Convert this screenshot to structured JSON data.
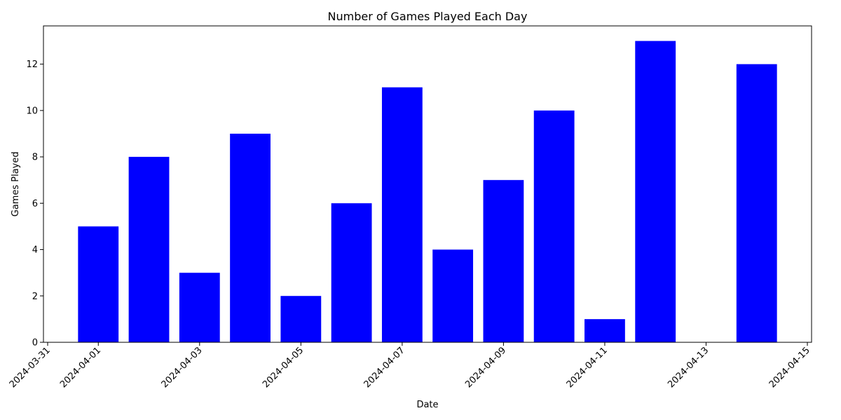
{
  "chart_data": {
    "type": "bar",
    "title": "Number of Games Played Each Day",
    "xlabel": "Date",
    "ylabel": "Games Played",
    "bar_color": "#0000ff",
    "grid": false,
    "x": [
      "2024-04-01",
      "2024-04-02",
      "2024-04-03",
      "2024-04-04",
      "2024-04-05",
      "2024-04-06",
      "2024-04-07",
      "2024-04-08",
      "2024-04-09",
      "2024-04-10",
      "2024-04-11",
      "2024-04-12",
      "2024-04-13",
      "2024-04-14"
    ],
    "values": [
      5,
      8,
      3,
      9,
      2,
      6,
      11,
      4,
      7,
      10,
      1,
      13,
      0,
      12
    ],
    "xlim": [
      "2024-03-31T00:00",
      "2024-04-15T00:00"
    ],
    "ylim": [
      0,
      13.65
    ],
    "xticks": [
      "2024-03-31",
      "2024-04-01",
      "2024-04-03",
      "2024-04-05",
      "2024-04-07",
      "2024-04-09",
      "2024-04-11",
      "2024-04-13",
      "2024-04-15"
    ],
    "yticks": [
      0,
      2,
      4,
      6,
      8,
      10,
      12
    ]
  }
}
